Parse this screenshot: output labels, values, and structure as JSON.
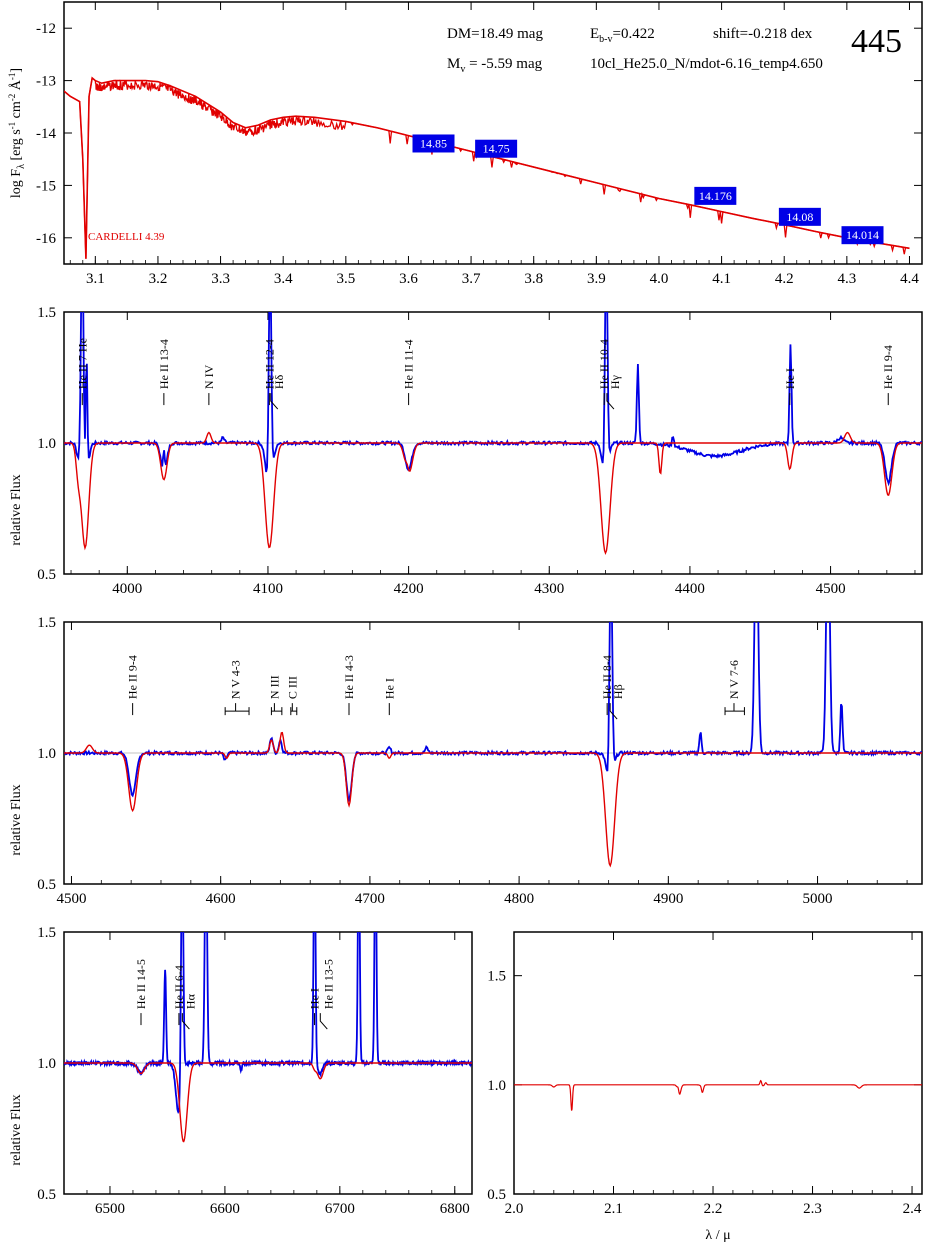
{
  "header": {
    "dm": "DM=18.49 mag",
    "ebv_prefix": "E",
    "ebv_sub": "b-v",
    "ebv_value": "=0.422",
    "shift": "shift=-0.218 dex",
    "mv_prefix": "M",
    "mv_sub": "v",
    "mv_value": " =  -5.59 mag",
    "model": "10cl_He25.0_N/mdot-6.16_temp4.650",
    "star_id": "445"
  },
  "colors": {
    "observed": "#0000e6",
    "model": "#e10000",
    "mag_box": "#0000e6",
    "axis": "#000000"
  },
  "chart_data": [
    {
      "id": "sed",
      "type": "line",
      "ylabel": "log Fλ [erg s⁻¹ cm⁻² Å⁻¹]",
      "xlim": [
        3.05,
        4.42
      ],
      "ylim": [
        -16.5,
        -11.5
      ],
      "xticks": [
        3.1,
        3.2,
        3.3,
        3.4,
        3.5,
        3.6,
        3.7,
        3.8,
        3.9,
        4.0,
        4.1,
        4.2,
        4.3,
        4.4
      ],
      "yticks": [
        -12,
        -13,
        -14,
        -15,
        -16
      ],
      "model_label": "CARDELLI 4.39",
      "model_sed": {
        "x": [
          3.05,
          3.06,
          3.075,
          3.08,
          3.085,
          3.09,
          3.095,
          3.1,
          3.11,
          3.13,
          3.15,
          3.18,
          3.2,
          3.22,
          3.24,
          3.26,
          3.28,
          3.3,
          3.32,
          3.34,
          3.36,
          3.38,
          3.4,
          3.42,
          3.45,
          3.5,
          3.55,
          3.6,
          3.65,
          3.7,
          3.75,
          3.8,
          3.85,
          3.9,
          3.95,
          4.0,
          4.05,
          4.1,
          4.15,
          4.2,
          4.25,
          4.3,
          4.35,
          4.4
        ],
        "y": [
          -13.2,
          -13.3,
          -13.4,
          -14.5,
          -16.4,
          -13.3,
          -12.95,
          -13.0,
          -13.05,
          -13.0,
          -13.0,
          -13.0,
          -13.02,
          -13.1,
          -13.2,
          -13.3,
          -13.45,
          -13.6,
          -13.8,
          -13.9,
          -13.85,
          -13.75,
          -13.7,
          -13.68,
          -13.7,
          -13.78,
          -13.9,
          -14.05,
          -14.2,
          -14.35,
          -14.5,
          -14.65,
          -14.8,
          -14.95,
          -15.1,
          -15.25,
          -15.37,
          -15.5,
          -15.63,
          -15.75,
          -15.88,
          -16.0,
          -16.1,
          -16.2
        ]
      },
      "photometry": [
        {
          "x": 3.64,
          "y": -14.2,
          "label": "14.85"
        },
        {
          "x": 3.74,
          "y": -14.3,
          "label": "14.75"
        },
        {
          "x": 4.09,
          "y": -15.2,
          "label": "14.176"
        },
        {
          "x": 4.225,
          "y": -15.6,
          "label": "14.08"
        },
        {
          "x": 4.325,
          "y": -15.95,
          "label": "14.014"
        }
      ]
    },
    {
      "id": "blue-1",
      "type": "line",
      "ylabel": "relative Flux",
      "xlim": [
        3955,
        4565
      ],
      "ylim": [
        0.5,
        1.5
      ],
      "xticks": [
        4000,
        4100,
        4200,
        4300,
        4400,
        4500
      ],
      "yticks": [
        0.5,
        1.0,
        1.5
      ],
      "lines": [
        {
          "wl": 3968,
          "label": "He II 7 He"
        },
        {
          "wl": 4026,
          "label": "He II 13-4"
        },
        {
          "wl": 4058,
          "label": "N IV"
        },
        {
          "wl": 4101,
          "label": "He II 12-4"
        },
        {
          "wl": 4102,
          "label": "Hδ",
          "hook": true
        },
        {
          "wl": 4200,
          "label": "He II 11-4"
        },
        {
          "wl": 4339,
          "label": "He II 10-4"
        },
        {
          "wl": 4341,
          "label": "Hγ",
          "hook": true
        },
        {
          "wl": 4471,
          "label": "He I"
        },
        {
          "wl": 4541,
          "label": "He II 9-4"
        }
      ],
      "model_profile": [
        {
          "c": 3970,
          "d": 0.4,
          "w": 2.6
        },
        {
          "c": 3965,
          "d": 0.1,
          "w": 1.5
        },
        {
          "c": 4026,
          "d": 0.14,
          "w": 2.2
        },
        {
          "c": 4101,
          "d": 0.4,
          "w": 3.0
        },
        {
          "c": 4200,
          "d": 0.12,
          "w": 2.6
        },
        {
          "c": 4340,
          "d": 0.42,
          "w": 3.2
        },
        {
          "c": 4379,
          "d": 0.12,
          "w": 1.0
        },
        {
          "c": 4471,
          "d": 0.1,
          "w": 1.5
        },
        {
          "c": 4541,
          "d": 0.2,
          "w": 2.6
        }
      ],
      "model_emission": [
        {
          "c": 4058,
          "h": 0.04,
          "w": 1.5
        },
        {
          "c": 4512,
          "h": 0.04,
          "w": 2.0
        },
        {
          "c": 4199,
          "h": 0.03,
          "w": 1.0
        }
      ],
      "obs_profile": [
        {
          "c": 3970,
          "d": 0.18,
          "w": 2.0
        },
        {
          "c": 3965,
          "d": 0.05,
          "w": 1.2
        },
        {
          "c": 4026,
          "d": 0.12,
          "w": 2.0
        },
        {
          "c": 4101,
          "d": 0.2,
          "w": 2.2
        },
        {
          "c": 4200,
          "d": 0.1,
          "w": 2.3
        },
        {
          "c": 4340,
          "d": 0.16,
          "w": 2.0
        },
        {
          "c": 4471,
          "d": 0.02,
          "w": 1.0
        },
        {
          "c": 4541,
          "d": 0.15,
          "w": 2.3
        },
        {
          "c": 4418,
          "d": 0.05,
          "w": 18
        }
      ],
      "obs_emission": [
        {
          "c": 3968,
          "h": 0.9,
          "w": 0.9
        },
        {
          "c": 3971,
          "h": 0.5,
          "w": 0.6
        },
        {
          "c": 4026,
          "h": 0.1,
          "w": 0.6
        },
        {
          "c": 4101.5,
          "h": 0.9,
          "w": 0.9
        },
        {
          "c": 4068,
          "h": 0.02,
          "w": 1.0
        },
        {
          "c": 4340.5,
          "h": 0.9,
          "w": 0.9
        },
        {
          "c": 4363,
          "h": 0.3,
          "w": 0.7
        },
        {
          "c": 4388,
          "h": 0.04,
          "w": 0.7
        },
        {
          "c": 4471.5,
          "h": 0.4,
          "w": 0.7
        },
        {
          "c": 4507,
          "h": 0.02,
          "w": 2.0
        }
      ]
    },
    {
      "id": "blue-2",
      "type": "line",
      "ylabel": "relative Flux",
      "xlim": [
        4495,
        5070
      ],
      "ylim": [
        0.5,
        1.5
      ],
      "xticks": [
        4500,
        4600,
        4700,
        4800,
        4900,
        5000
      ],
      "yticks": [
        0.5,
        1.0,
        1.5
      ],
      "lines": [
        {
          "wl": 4541,
          "label": "He II 9-4"
        },
        {
          "wl": 4610,
          "label": "N V 4-3",
          "bracket": [
            4603,
            4619
          ]
        },
        {
          "wl": 4636,
          "label": "N III",
          "bracket": [
            4634,
            4641
          ]
        },
        {
          "wl": 4648,
          "label": "C III",
          "bracket": [
            4647,
            4651
          ]
        },
        {
          "wl": 4686,
          "label": "He II 4-3"
        },
        {
          "wl": 4713,
          "label": "He I"
        },
        {
          "wl": 4859,
          "label": "He II 8-4"
        },
        {
          "wl": 4861,
          "label": "Hβ",
          "hook": true
        },
        {
          "wl": 4944,
          "label": "N V 7-6",
          "bracket": [
            4938,
            4951
          ]
        }
      ],
      "model_profile": [
        {
          "c": 4541,
          "d": 0.22,
          "w": 2.6
        },
        {
          "c": 4686,
          "d": 0.2,
          "w": 1.8
        },
        {
          "c": 4861,
          "d": 0.43,
          "w": 3.0
        },
        {
          "c": 4604,
          "d": 0.02,
          "w": 1.0
        },
        {
          "c": 4713,
          "d": 0.02,
          "w": 1.0
        }
      ],
      "model_emission": [
        {
          "c": 4512,
          "h": 0.03,
          "w": 2.0
        },
        {
          "c": 4634,
          "h": 0.05,
          "w": 1.2
        },
        {
          "c": 4641,
          "h": 0.08,
          "w": 1.2
        }
      ],
      "obs_profile": [
        {
          "c": 4541,
          "d": 0.16,
          "w": 2.3
        },
        {
          "c": 4686,
          "d": 0.18,
          "w": 1.8
        },
        {
          "c": 4861,
          "d": 0.15,
          "w": 2.0
        },
        {
          "c": 4603,
          "d": 0.03,
          "w": 1.0
        }
      ],
      "obs_emission": [
        {
          "c": 4634,
          "h": 0.06,
          "w": 1.0
        },
        {
          "c": 4640,
          "h": 0.05,
          "w": 1.0
        },
        {
          "c": 4713,
          "h": 0.02,
          "w": 1.0
        },
        {
          "c": 4861.5,
          "h": 0.9,
          "w": 0.9
        },
        {
          "c": 4921.5,
          "h": 0.08,
          "w": 0.7
        },
        {
          "c": 4959,
          "h": 0.9,
          "w": 1.2
        },
        {
          "c": 5007,
          "h": 0.9,
          "w": 1.2
        },
        {
          "c": 5016,
          "h": 0.2,
          "w": 0.7
        },
        {
          "c": 4738,
          "h": 0.02,
          "w": 1.0
        }
      ]
    },
    {
      "id": "red",
      "type": "line",
      "ylabel": "relative Flux",
      "xlim": [
        6460,
        6815
      ],
      "ylim": [
        0.5,
        1.5
      ],
      "xticks": [
        6500,
        6600,
        6700,
        6800
      ],
      "yticks": [
        0.5,
        1.0,
        1.5
      ],
      "lines": [
        {
          "wl": 6527,
          "label": "He II 14-5"
        },
        {
          "wl": 6560,
          "label": "He II 6-4"
        },
        {
          "wl": 6563,
          "label": "Hα",
          "hook": true
        },
        {
          "wl": 6678,
          "label": "He I"
        },
        {
          "wl": 6683,
          "label": "He II 13-5",
          "hook": true
        }
      ],
      "model_profile": [
        {
          "c": 6527,
          "d": 0.04,
          "w": 3.0
        },
        {
          "c": 6564,
          "d": 0.3,
          "w": 3.2
        },
        {
          "c": 6678,
          "d": 0.02,
          "w": 1.5
        },
        {
          "c": 6683,
          "d": 0.06,
          "w": 2.5
        }
      ],
      "model_emission": [],
      "obs_profile": [
        {
          "c": 6527,
          "d": 0.04,
          "w": 3.0
        },
        {
          "c": 6560,
          "d": 0.2,
          "w": 2.5
        },
        {
          "c": 6614,
          "d": 0.03,
          "w": 0.7
        },
        {
          "c": 6683,
          "d": 0.04,
          "w": 2.0
        }
      ],
      "obs_emission": [
        {
          "c": 6548,
          "h": 0.36,
          "w": 0.8
        },
        {
          "c": 6562.8,
          "h": 0.9,
          "w": 1.0
        },
        {
          "c": 6583.5,
          "h": 0.9,
          "w": 1.0
        },
        {
          "c": 6678,
          "h": 0.9,
          "w": 0.8
        },
        {
          "c": 6716.5,
          "h": 0.9,
          "w": 0.8
        },
        {
          "c": 6731,
          "h": 0.9,
          "w": 0.8
        }
      ]
    },
    {
      "id": "ir",
      "type": "line",
      "xlabel": "λ / μ",
      "xlim": [
        2.0,
        2.41
      ],
      "ylim": [
        0.5,
        1.7
      ],
      "xticks": [
        2.0,
        2.1,
        2.2,
        2.3,
        2.4
      ],
      "yticks": [
        0.5,
        1.0,
        1.5
      ],
      "model_profile": [
        {
          "c": 2.058,
          "d": 0.12,
          "w": 0.0008
        },
        {
          "c": 2.112,
          "d": 0.02,
          "w": 0.0008
        },
        {
          "c": 2.166,
          "d": 0.05,
          "w": 0.0015
        },
        {
          "c": 2.189,
          "d": 0.04,
          "w": 0.0012
        },
        {
          "c": 2.347,
          "d": 0.015,
          "w": 0.002
        },
        {
          "c": 2.04,
          "d": 0.01,
          "w": 0.0015
        },
        {
          "c": 2.25,
          "d": 0.005,
          "w": 0.001
        }
      ],
      "model_emission": [
        {
          "c": 2.112,
          "h": 0.02,
          "w": 0.0008
        },
        {
          "c": 2.165,
          "h": 0.025,
          "w": 0.0008
        },
        {
          "c": 2.188,
          "h": 0.015,
          "w": 0.0008
        },
        {
          "c": 2.248,
          "h": 0.02,
          "w": 0.0008
        },
        {
          "c": 2.253,
          "h": 0.01,
          "w": 0.0008
        }
      ]
    }
  ]
}
